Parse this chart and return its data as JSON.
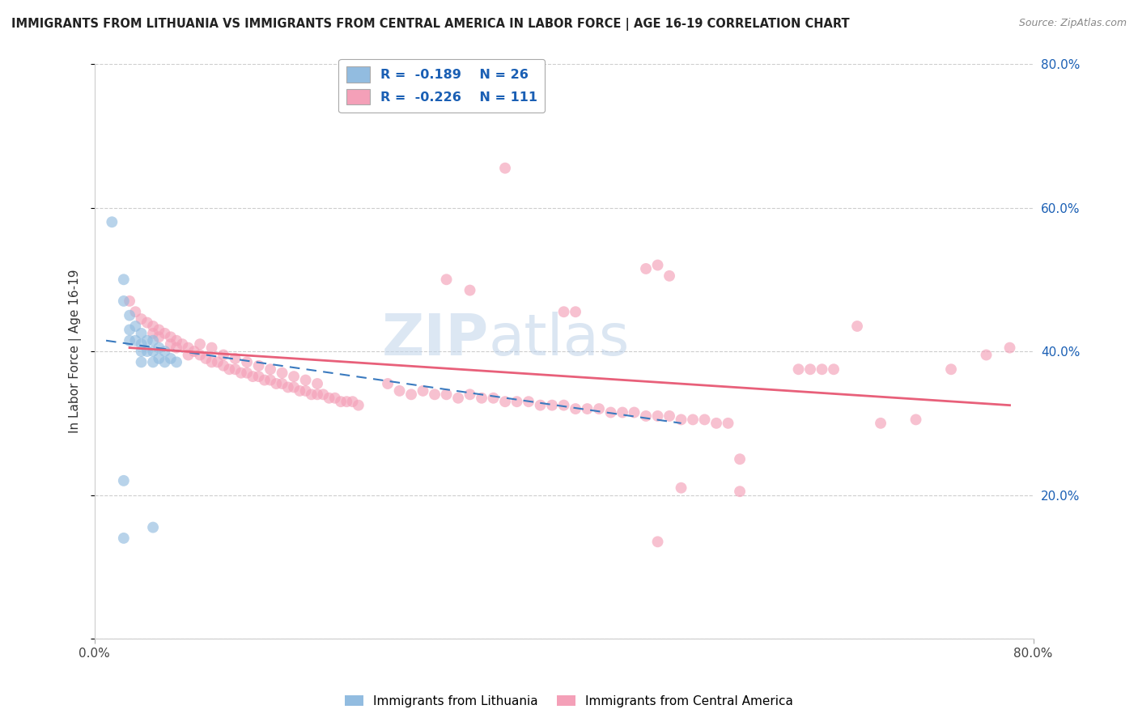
{
  "title": "IMMIGRANTS FROM LITHUANIA VS IMMIGRANTS FROM CENTRAL AMERICA IN LABOR FORCE | AGE 16-19 CORRELATION CHART",
  "source": "Source: ZipAtlas.com",
  "ylabel": "In Labor Force | Age 16-19",
  "watermark": "ZIPatlas",
  "xlim": [
    0.0,
    0.8
  ],
  "ylim": [
    0.0,
    0.8
  ],
  "xticks": [
    0.0,
    0.8
  ],
  "xtick_labels": [
    "0.0%",
    "80.0%"
  ],
  "yticks": [
    0.0,
    0.2,
    0.4,
    0.6,
    0.8
  ],
  "ytick_labels_right": [
    "",
    "20.0%",
    "40.0%",
    "60.0%",
    "80.0%"
  ],
  "color_lithuania": "#92bce0",
  "color_central_america": "#f4a0b8",
  "trendline_lithuania_color": "#3a7abf",
  "trendline_ca_color": "#e8607a",
  "background_color": "#ffffff",
  "lithuania_points": [
    [
      0.015,
      0.58
    ],
    [
      0.025,
      0.5
    ],
    [
      0.025,
      0.47
    ],
    [
      0.03,
      0.45
    ],
    [
      0.03,
      0.43
    ],
    [
      0.03,
      0.415
    ],
    [
      0.035,
      0.435
    ],
    [
      0.035,
      0.415
    ],
    [
      0.04,
      0.425
    ],
    [
      0.04,
      0.41
    ],
    [
      0.04,
      0.4
    ],
    [
      0.04,
      0.385
    ],
    [
      0.045,
      0.415
    ],
    [
      0.045,
      0.4
    ],
    [
      0.05,
      0.415
    ],
    [
      0.05,
      0.4
    ],
    [
      0.05,
      0.385
    ],
    [
      0.055,
      0.405
    ],
    [
      0.055,
      0.39
    ],
    [
      0.06,
      0.4
    ],
    [
      0.06,
      0.385
    ],
    [
      0.065,
      0.39
    ],
    [
      0.07,
      0.385
    ],
    [
      0.025,
      0.22
    ],
    [
      0.05,
      0.155
    ],
    [
      0.025,
      0.14
    ]
  ],
  "ca_points": [
    [
      0.03,
      0.47
    ],
    [
      0.035,
      0.455
    ],
    [
      0.04,
      0.445
    ],
    [
      0.045,
      0.44
    ],
    [
      0.05,
      0.435
    ],
    [
      0.05,
      0.425
    ],
    [
      0.055,
      0.43
    ],
    [
      0.055,
      0.42
    ],
    [
      0.06,
      0.425
    ],
    [
      0.065,
      0.42
    ],
    [
      0.065,
      0.41
    ],
    [
      0.07,
      0.415
    ],
    [
      0.07,
      0.405
    ],
    [
      0.075,
      0.41
    ],
    [
      0.08,
      0.405
    ],
    [
      0.08,
      0.395
    ],
    [
      0.085,
      0.4
    ],
    [
      0.09,
      0.395
    ],
    [
      0.095,
      0.39
    ],
    [
      0.1,
      0.385
    ],
    [
      0.105,
      0.385
    ],
    [
      0.11,
      0.38
    ],
    [
      0.115,
      0.375
    ],
    [
      0.12,
      0.375
    ],
    [
      0.125,
      0.37
    ],
    [
      0.13,
      0.37
    ],
    [
      0.135,
      0.365
    ],
    [
      0.14,
      0.365
    ],
    [
      0.145,
      0.36
    ],
    [
      0.15,
      0.36
    ],
    [
      0.155,
      0.355
    ],
    [
      0.16,
      0.355
    ],
    [
      0.165,
      0.35
    ],
    [
      0.17,
      0.35
    ],
    [
      0.175,
      0.345
    ],
    [
      0.18,
      0.345
    ],
    [
      0.185,
      0.34
    ],
    [
      0.19,
      0.34
    ],
    [
      0.195,
      0.34
    ],
    [
      0.2,
      0.335
    ],
    [
      0.205,
      0.335
    ],
    [
      0.21,
      0.33
    ],
    [
      0.215,
      0.33
    ],
    [
      0.22,
      0.33
    ],
    [
      0.225,
      0.325
    ],
    [
      0.09,
      0.41
    ],
    [
      0.1,
      0.405
    ],
    [
      0.11,
      0.395
    ],
    [
      0.12,
      0.39
    ],
    [
      0.13,
      0.385
    ],
    [
      0.14,
      0.38
    ],
    [
      0.15,
      0.375
    ],
    [
      0.16,
      0.37
    ],
    [
      0.17,
      0.365
    ],
    [
      0.18,
      0.36
    ],
    [
      0.19,
      0.355
    ],
    [
      0.25,
      0.355
    ],
    [
      0.26,
      0.345
    ],
    [
      0.27,
      0.34
    ],
    [
      0.28,
      0.345
    ],
    [
      0.29,
      0.34
    ],
    [
      0.3,
      0.34
    ],
    [
      0.31,
      0.335
    ],
    [
      0.32,
      0.34
    ],
    [
      0.33,
      0.335
    ],
    [
      0.34,
      0.335
    ],
    [
      0.35,
      0.33
    ],
    [
      0.36,
      0.33
    ],
    [
      0.37,
      0.33
    ],
    [
      0.38,
      0.325
    ],
    [
      0.39,
      0.325
    ],
    [
      0.4,
      0.325
    ],
    [
      0.41,
      0.32
    ],
    [
      0.42,
      0.32
    ],
    [
      0.43,
      0.32
    ],
    [
      0.44,
      0.315
    ],
    [
      0.45,
      0.315
    ],
    [
      0.46,
      0.315
    ],
    [
      0.47,
      0.31
    ],
    [
      0.48,
      0.31
    ],
    [
      0.49,
      0.31
    ],
    [
      0.5,
      0.305
    ],
    [
      0.51,
      0.305
    ],
    [
      0.52,
      0.305
    ],
    [
      0.53,
      0.3
    ],
    [
      0.54,
      0.3
    ],
    [
      0.3,
      0.5
    ],
    [
      0.32,
      0.485
    ],
    [
      0.4,
      0.455
    ],
    [
      0.41,
      0.455
    ],
    [
      0.48,
      0.135
    ],
    [
      0.5,
      0.21
    ],
    [
      0.55,
      0.205
    ],
    [
      0.55,
      0.25
    ],
    [
      0.6,
      0.375
    ],
    [
      0.61,
      0.375
    ],
    [
      0.62,
      0.375
    ],
    [
      0.63,
      0.375
    ],
    [
      0.47,
      0.515
    ],
    [
      0.65,
      0.435
    ],
    [
      0.67,
      0.3
    ],
    [
      0.7,
      0.305
    ],
    [
      0.73,
      0.375
    ],
    [
      0.76,
      0.395
    ],
    [
      0.78,
      0.405
    ],
    [
      0.35,
      0.655
    ],
    [
      0.48,
      0.52
    ],
    [
      0.49,
      0.505
    ]
  ],
  "trendline_lithuania": {
    "x_start": 0.01,
    "x_end": 0.5,
    "y_start": 0.415,
    "y_end": 0.3
  },
  "trendline_ca": {
    "x_start": 0.03,
    "x_end": 0.78,
    "y_start": 0.405,
    "y_end": 0.325
  },
  "legend_box_color": "#ffffff",
  "legend_font_color_values": "#1a5fb4",
  "grid_color": "#c8c8c8",
  "marker_size": 100
}
